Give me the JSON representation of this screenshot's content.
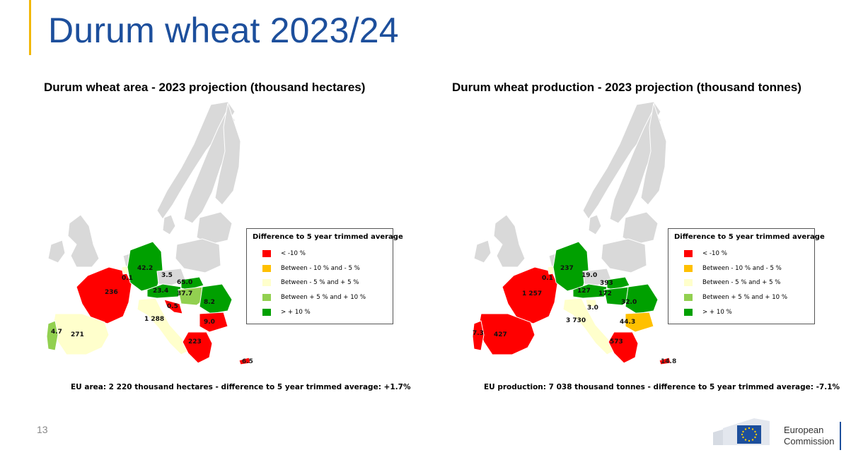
{
  "slide": {
    "title": "Durum wheat 2023/24",
    "page_number": "13",
    "logo_text": "European\nCommission",
    "accent_color": "#f2b80a",
    "title_color": "#1d4f9c"
  },
  "legend": {
    "title": "Difference to 5 year trimmed average",
    "items": [
      {
        "label": "<  -10 %",
        "color": "#ff0000"
      },
      {
        "label": "Between  - 10 %  and  - 5 %",
        "color": "#ffc000"
      },
      {
        "label": "Between  - 5 %  and  + 5 %",
        "color": "#ffffcc"
      },
      {
        "label": "Between  + 5 %  and  + 10 %",
        "color": "#92d050"
      },
      {
        "label": ">  + 10 %",
        "color": "#00a000"
      }
    ]
  },
  "maps": [
    {
      "title": "Durum wheat area - 2023 projection  (thousand hectares)",
      "summary": "EU area: 2 220 thousand hectares - difference to 5 year trimmed average: +1.7%",
      "regions": [
        {
          "country": "France",
          "value": "236",
          "class": "< -10 %"
        },
        {
          "country": "Spain",
          "value": "271",
          "class": "Between -5 % and +5 %"
        },
        {
          "country": "Portugal",
          "value": "4.7",
          "class": "Between +5 % and +10 %"
        },
        {
          "country": "Italy",
          "value": "1 288",
          "class": "Between -5 % and +5 %"
        },
        {
          "country": "Germany",
          "value": "42.2",
          "class": "> +10 %"
        },
        {
          "country": "Belgium",
          "value": "0.1",
          "class": "Between -5 % and +5 %"
        },
        {
          "country": "Czechia",
          "value": "3.5",
          "class": "Between -5 % and +5 %"
        },
        {
          "country": "Austria",
          "value": "23.4",
          "class": "> +10 %"
        },
        {
          "country": "Slovakia",
          "value": "65.0",
          "class": "> +10 %"
        },
        {
          "country": "Hungary",
          "value": "37.7",
          "class": "Between +5 % and +10 %"
        },
        {
          "country": "Croatia",
          "value": "0.5",
          "class": "< -10 %"
        },
        {
          "country": "Romania",
          "value": "8.2",
          "class": "> +10 %"
        },
        {
          "country": "Bulgaria",
          "value": "9.0",
          "class": "< -10 %"
        },
        {
          "country": "Greece",
          "value": "223",
          "class": "< -10 %"
        },
        {
          "country": "Cyprus",
          "value": "6.5",
          "class": "< -10 %"
        }
      ]
    },
    {
      "title": "Durum wheat production - 2023 projection  (thousand tonnes)",
      "summary": "EU production: 7 038 thousand tonnes - difference to 5 year trimmed average: -7.1%",
      "regions": [
        {
          "country": "France",
          "value": "1 257",
          "class": "< -10 %"
        },
        {
          "country": "Spain",
          "value": "427",
          "class": "< -10 %"
        },
        {
          "country": "Portugal",
          "value": "7.3",
          "class": "< -10 %"
        },
        {
          "country": "Italy",
          "value": "3 730",
          "class": "Between -5 % and +5 %"
        },
        {
          "country": "Germany",
          "value": "237",
          "class": "> +10 %"
        },
        {
          "country": "Belgium",
          "value": "0.1",
          "class": "Between -5 % and +5 %"
        },
        {
          "country": "Czechia",
          "value": "19.0",
          "class": "Between -5 % and +5 %"
        },
        {
          "country": "Austria",
          "value": "127",
          "class": "> +10 %"
        },
        {
          "country": "Slovakia",
          "value": "393",
          "class": "> +10 %"
        },
        {
          "country": "Hungary",
          "value": "172",
          "class": "> +10 %"
        },
        {
          "country": "Slovenia",
          "value": "3.0",
          "class": "Between -5 % and +5 %"
        },
        {
          "country": "Romania",
          "value": "32.0",
          "class": "> +10 %"
        },
        {
          "country": "Bulgaria",
          "value": "44.3",
          "class": "Between -10 % and -5 %"
        },
        {
          "country": "Greece",
          "value": "573",
          "class": "< -10 %"
        },
        {
          "country": "Cyprus",
          "value": "14.8",
          "class": "< -10 %"
        }
      ]
    }
  ]
}
